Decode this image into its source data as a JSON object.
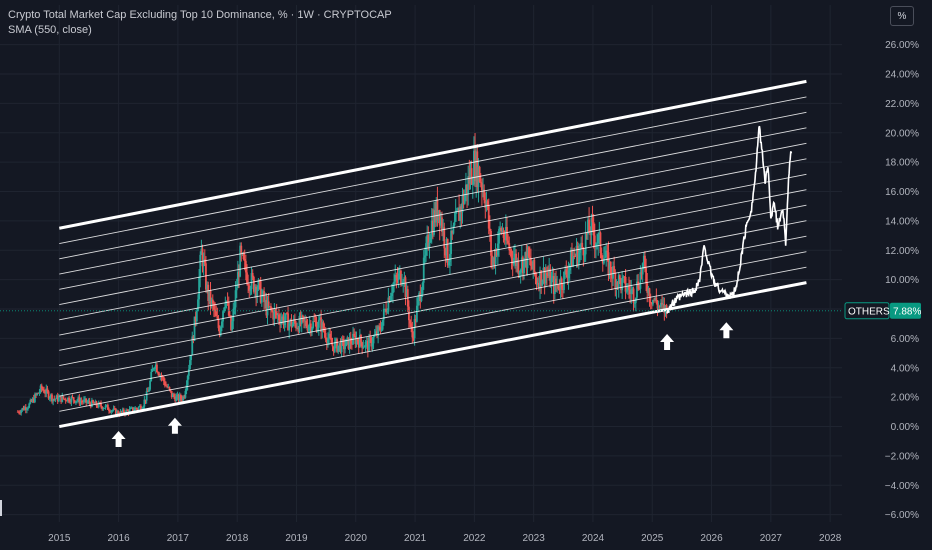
{
  "header": {
    "title": "Crypto Total Market Cap Excluding Top 10 Dominance, % · 1W · CRYPTOCAP",
    "indicator": "SMA (550, close)"
  },
  "scale_button": {
    "label": "%"
  },
  "colors": {
    "background": "#141823",
    "grid": "#1f2430",
    "candle_up": "#26a69a",
    "candle_down": "#ef5350",
    "channel": "#ffffff",
    "price_label_bg": "#089981",
    "axis_text": "#b2b5be"
  },
  "chart_data": {
    "type": "candlestick",
    "symbol_label": "OTHERS.D",
    "last_value_label": "7.88%",
    "last_value": 7.88,
    "y_unit": "%",
    "ylim": [
      -6.5,
      27
    ],
    "xlim": [
      2014.0,
      2028.2
    ],
    "y_ticks": [
      "26.00%",
      "24.00%",
      "22.00%",
      "20.00%",
      "18.00%",
      "16.00%",
      "14.00%",
      "12.00%",
      "10.00%",
      "8.00%",
      "6.00%",
      "4.00%",
      "2.00%",
      "0.00%",
      "−2.00%",
      "−4.00%",
      "−6.00%"
    ],
    "y_tick_values": [
      26,
      24,
      22,
      20,
      18,
      16,
      14,
      12,
      10,
      8,
      6,
      4,
      2,
      0,
      -2,
      -4,
      -6
    ],
    "x_ticks": [
      "2015",
      "2016",
      "2017",
      "2018",
      "2019",
      "2020",
      "2021",
      "2022",
      "2023",
      "2024",
      "2025",
      "2026",
      "2027",
      "2028"
    ],
    "x_tick_values": [
      2015,
      2016,
      2017,
      2018,
      2019,
      2020,
      2021,
      2022,
      2023,
      2024,
      2025,
      2026,
      2027,
      2028
    ],
    "price_series": [
      [
        2014.3,
        1.0
      ],
      [
        2014.5,
        1.5
      ],
      [
        2014.7,
        2.6
      ],
      [
        2014.9,
        1.9
      ],
      [
        2015.2,
        1.9
      ],
      [
        2015.5,
        1.6
      ],
      [
        2015.8,
        1.3
      ],
      [
        2016.0,
        0.9
      ],
      [
        2016.2,
        1.1
      ],
      [
        2016.4,
        1.4
      ],
      [
        2016.5,
        2.4
      ],
      [
        2016.6,
        4.4
      ],
      [
        2016.8,
        2.8
      ],
      [
        2016.9,
        2.1
      ],
      [
        2017.0,
        1.9
      ],
      [
        2017.1,
        2.0
      ],
      [
        2017.2,
        4.5
      ],
      [
        2017.3,
        7.5
      ],
      [
        2017.4,
        12.0
      ],
      [
        2017.5,
        9.0
      ],
      [
        2017.6,
        8.0
      ],
      [
        2017.7,
        6.5
      ],
      [
        2017.8,
        9.0
      ],
      [
        2017.9,
        6.5
      ],
      [
        2018.05,
        11.5
      ],
      [
        2018.2,
        10.0
      ],
      [
        2018.35,
        9.5
      ],
      [
        2018.5,
        8.0
      ],
      [
        2018.7,
        7.5
      ],
      [
        2018.9,
        7.0
      ],
      [
        2019.1,
        7.0
      ],
      [
        2019.4,
        7.0
      ],
      [
        2019.6,
        5.5
      ],
      [
        2019.8,
        5.5
      ],
      [
        2020.0,
        6.0
      ],
      [
        2020.2,
        5.5
      ],
      [
        2020.4,
        6.5
      ],
      [
        2020.6,
        9.5
      ],
      [
        2020.8,
        10.5
      ],
      [
        2020.95,
        6.0
      ],
      [
        2021.1,
        9.5
      ],
      [
        2021.25,
        13.5
      ],
      [
        2021.4,
        15.0
      ],
      [
        2021.55,
        11.5
      ],
      [
        2021.7,
        14.0
      ],
      [
        2021.85,
        16.0
      ],
      [
        2022.0,
        18.0
      ],
      [
        2022.1,
        17.0
      ],
      [
        2022.2,
        15.5
      ],
      [
        2022.3,
        11.0
      ],
      [
        2022.45,
        13.5
      ],
      [
        2022.6,
        12.0
      ],
      [
        2022.75,
        11.0
      ],
      [
        2022.9,
        11.5
      ],
      [
        2023.05,
        10.0
      ],
      [
        2023.2,
        10.5
      ],
      [
        2023.35,
        9.5
      ],
      [
        2023.5,
        10.0
      ],
      [
        2023.65,
        11.5
      ],
      [
        2023.8,
        12.0
      ],
      [
        2023.95,
        13.5
      ],
      [
        2024.1,
        12.5
      ],
      [
        2024.25,
        11.0
      ],
      [
        2024.4,
        10.0
      ],
      [
        2024.55,
        9.5
      ],
      [
        2024.7,
        9.0
      ],
      [
        2024.85,
        11.0
      ],
      [
        2024.95,
        9.0
      ],
      [
        2025.05,
        8.5
      ],
      [
        2025.15,
        8.0
      ],
      [
        2025.25,
        7.9
      ]
    ],
    "projection": [
      [
        2025.25,
        7.9
      ],
      [
        2025.4,
        8.6
      ],
      [
        2025.55,
        9.0
      ],
      [
        2025.7,
        9.2
      ],
      [
        2025.8,
        10.0
      ],
      [
        2025.88,
        12.4
      ],
      [
        2025.95,
        11.0
      ],
      [
        2026.05,
        9.8
      ],
      [
        2026.15,
        9.3
      ],
      [
        2026.25,
        9.0
      ],
      [
        2026.35,
        8.9
      ],
      [
        2026.42,
        9.5
      ],
      [
        2026.5,
        11.5
      ],
      [
        2026.58,
        13.5
      ],
      [
        2026.68,
        15.0
      ],
      [
        2026.75,
        17.5
      ],
      [
        2026.8,
        20.4
      ],
      [
        2026.85,
        19.0
      ],
      [
        2026.9,
        16.5
      ],
      [
        2026.95,
        18.0
      ],
      [
        2027.0,
        14.0
      ],
      [
        2027.05,
        15.5
      ],
      [
        2027.12,
        13.5
      ],
      [
        2027.2,
        15.0
      ],
      [
        2027.25,
        12.5
      ],
      [
        2027.3,
        17.0
      ],
      [
        2027.35,
        19.0
      ]
    ],
    "channel": {
      "lower": [
        [
          2015.0,
          0.0
        ],
        [
          2027.6,
          9.8
        ]
      ],
      "upper": [
        [
          2015.0,
          13.5
        ],
        [
          2027.6,
          23.5
        ]
      ],
      "inner_lines": 12
    },
    "markers": [
      {
        "type": "arrow-up",
        "x": 2016.0,
        "y": -0.3
      },
      {
        "type": "arrow-up",
        "x": 2016.95,
        "y": 0.6
      },
      {
        "type": "arrow-up",
        "x": 2025.25,
        "y": 6.3
      },
      {
        "type": "arrow-up",
        "x": 2026.25,
        "y": 7.1
      }
    ]
  }
}
